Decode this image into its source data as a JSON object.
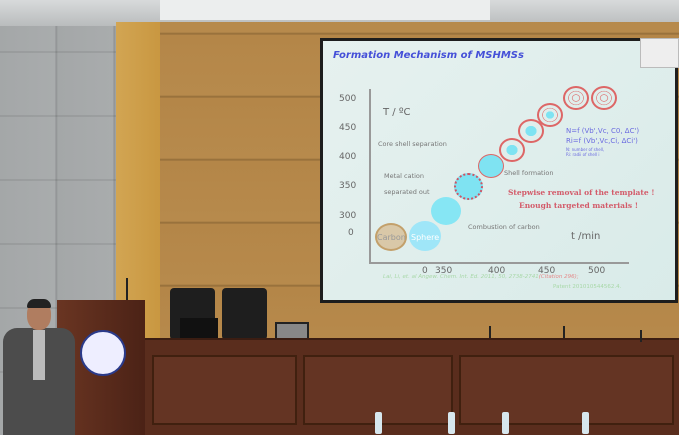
{
  "slide": {
    "title": "Formation Mechanism of MSHMSs",
    "y_axis_label": "T / ºC",
    "x_axis_label": "t /min",
    "y_ticks": [
      "500",
      "450",
      "400",
      "350",
      "300",
      "0"
    ],
    "x_ticks": [
      "0",
      "350",
      "400",
      "450",
      "500"
    ],
    "labels": {
      "core_shell": "Core shell separation",
      "metal_cation_1": "Metal cation",
      "metal_cation_2": "separated out",
      "shell_formation": "Shell formation",
      "combustion": "Combustion of carbon",
      "carbon": "Carbon",
      "sphere": "Sphere"
    },
    "formula_n": "N=f (Vb',Vc, C0, ΔC')",
    "formula_r": "Ri=f (Vb',Vc,Ci, ΔCi')",
    "formula_note_1": "N: number of shell,",
    "formula_note_2": "Ri: radii of shell i",
    "highlight_1": "Stepwise removal of the template !",
    "highlight_2": "Enough targeted materials !",
    "citation": "Lai, Li, et. al Angew. Chem. Int. Ed. 2011, 50, 2738-2741",
    "citation_count": "(Citation 296);",
    "patent": "Patent 201010544562.4."
  },
  "colors": {
    "title": "#4550d8",
    "highlight": "#d35b6a",
    "sphere": "#7fe3f2",
    "wood": "#b78a4c",
    "desk": "#5a2d1d"
  }
}
